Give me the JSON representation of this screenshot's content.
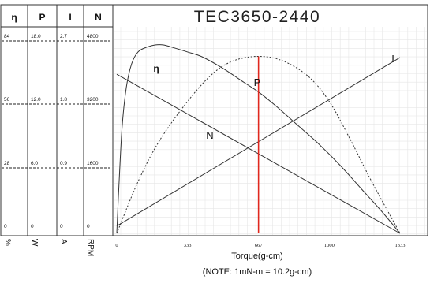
{
  "chart_data": {
    "type": "line",
    "title": "TEC3650-2440",
    "xlabel": "Torque(g-cm)",
    "note": "(NOTE: 1mN-m = 10.2g-cm)",
    "x_ticks": [
      "0",
      "333",
      "667",
      "1000",
      "1333"
    ],
    "xlim": [
      0,
      1333
    ],
    "grid": true,
    "rated_torque": 667,
    "scales": [
      {
        "header": "η",
        "unit": "%",
        "ticks": [
          "0",
          "28",
          "56",
          "84"
        ],
        "range": [
          0,
          84
        ]
      },
      {
        "header": "P",
        "unit": "W",
        "ticks": [
          "0",
          "6.0",
          "12.0",
          "18.0"
        ],
        "range": [
          0,
          18
        ]
      },
      {
        "header": "I",
        "unit": "A",
        "ticks": [
          "0",
          "0.9",
          "1.8",
          "2.7"
        ],
        "range": [
          0,
          2.7
        ]
      },
      {
        "header": "N",
        "unit": "RPM",
        "ticks": [
          "0",
          "1600",
          "3200",
          "4800"
        ],
        "range": [
          0,
          4800
        ]
      }
    ],
    "series": [
      {
        "name": "η",
        "scale": 0,
        "style": "solid",
        "x": [
          0,
          10,
          25,
          45,
          70,
          100,
          140,
          180,
          220,
          260,
          333,
          400,
          500,
          600,
          667,
          750,
          850,
          950,
          1050,
          1150,
          1250,
          1333
        ],
        "values": [
          0,
          20,
          45,
          62,
          72,
          77,
          79,
          80,
          80,
          79,
          77,
          75,
          70,
          64,
          60,
          54,
          46,
          38,
          29,
          19,
          9,
          0
        ]
      },
      {
        "name": "P",
        "scale": 1,
        "style": "dotted",
        "x": [
          0,
          100,
          200,
          333,
          450,
          550,
          667,
          780,
          900,
          1000,
          1100,
          1200,
          1333
        ],
        "values": [
          0,
          4.7,
          8.4,
          12.0,
          14.5,
          15.7,
          16.1,
          15.7,
          14.3,
          12.0,
          8.5,
          4.7,
          0
        ]
      },
      {
        "name": "I",
        "scale": 2,
        "style": "solid",
        "x": [
          0,
          1333
        ],
        "values": [
          0.1,
          2.4
        ]
      },
      {
        "name": "N",
        "scale": 3,
        "style": "solid",
        "x": [
          0,
          1333
        ],
        "values": [
          3860,
          0
        ]
      }
    ],
    "colors": {
      "rated_line": "#e0281e",
      "curve": "#333333",
      "grid": "#e6e6e6"
    }
  }
}
